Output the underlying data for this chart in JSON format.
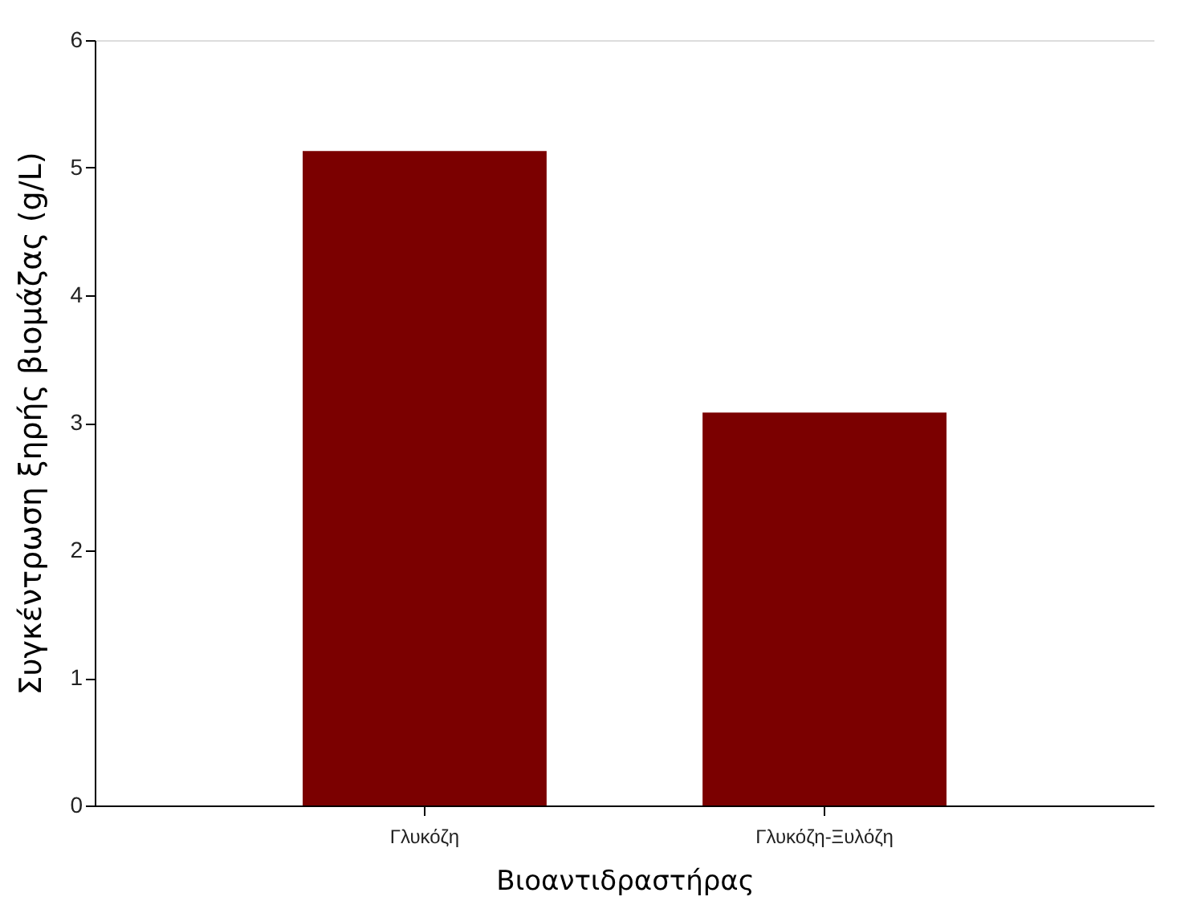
{
  "chart_data": {
    "type": "bar",
    "categories": [
      "Γλυκόζη",
      "Γλυκόζη-Ξυλόζη"
    ],
    "values": [
      5.13,
      3.08
    ],
    "color": "#7b0000",
    "xlabel": "Βιοαντιδραστήρας",
    "ylabel": "Συγκέντρωση ξηρής βιομάζας (g/L)",
    "ylim": [
      0,
      6
    ],
    "yticks": [
      0,
      1,
      2,
      3,
      4,
      5,
      6
    ],
    "grid": false
  }
}
